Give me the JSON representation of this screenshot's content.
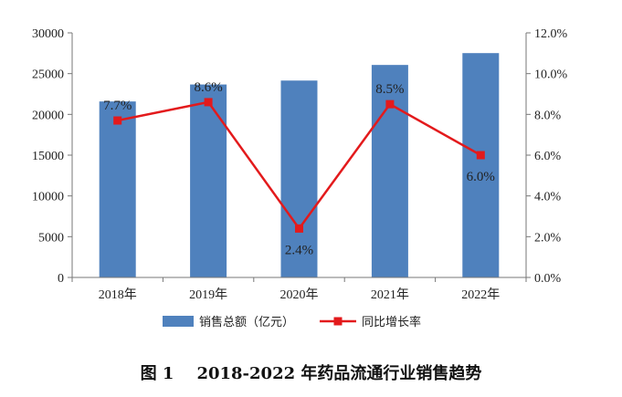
{
  "caption": "图 1    2018-2022 年药品流通行业销售趋势",
  "chart_data": {
    "type": "bar+line",
    "categories": [
      "2018年",
      "2019年",
      "2020年",
      "2021年",
      "2022年"
    ],
    "series": [
      {
        "name": "销售总额（亿元）",
        "type": "bar",
        "axis": "left",
        "color": "#4f81bd",
        "values": [
          21586,
          23667,
          24149,
          26064,
          27516
        ]
      },
      {
        "name": "同比增长率",
        "type": "line",
        "axis": "right",
        "color": "#e31a1c",
        "values": [
          7.7,
          8.6,
          2.4,
          8.5,
          6.0
        ],
        "labels": [
          "7.7%",
          "8.6%",
          "2.4%",
          "8.5%",
          "6.0%"
        ]
      }
    ],
    "y_left": {
      "ylim": [
        0,
        30000
      ],
      "ticks": [
        "0",
        "5000",
        "10000",
        "15000",
        "20000",
        "25000",
        "30000"
      ]
    },
    "y_right": {
      "ylim": [
        0,
        12
      ],
      "ticks": [
        "0.0%",
        "2.0%",
        "4.0%",
        "6.0%",
        "8.0%",
        "10.0%",
        "12.0%"
      ]
    },
    "grid": false,
    "legend_position": "bottom"
  }
}
